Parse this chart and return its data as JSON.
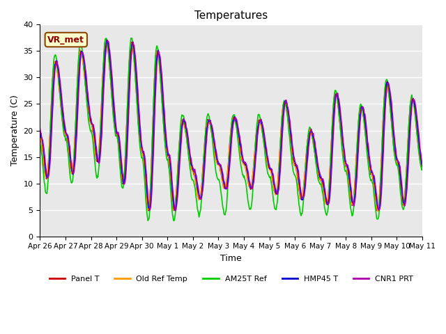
{
  "title": "Temperatures",
  "xlabel": "Time",
  "ylabel": "Temperature (C)",
  "ylim": [
    0,
    40
  ],
  "yticks": [
    0,
    5,
    10,
    15,
    20,
    25,
    30,
    35,
    40
  ],
  "background_color": "#e8e8e8",
  "series": {
    "Panel T": {
      "color": "#cc0000",
      "lw": 1.2
    },
    "Old Ref Temp": {
      "color": "#ff9900",
      "lw": 1.2
    },
    "AM25T Ref": {
      "color": "#00cc00",
      "lw": 1.2
    },
    "HMP45 T": {
      "color": "#0000cc",
      "lw": 1.2
    },
    "CNR1 PRT": {
      "color": "#aa00aa",
      "lw": 1.2
    }
  },
  "text_annotation": "VR_met",
  "tick_labels": [
    "Apr 26",
    "Apr 27",
    "Apr 28",
    "Apr 29",
    "Apr 30",
    "May 1",
    "May 2",
    "May 3",
    "May 4",
    "May 5",
    "May 6",
    "May 7",
    "May 8",
    "May 9",
    "May 10",
    "May 11"
  ],
  "daily_highs": [
    33,
    35,
    37,
    36.5,
    35,
    22,
    22,
    22.5,
    22,
    25.5,
    20,
    27,
    24.5,
    29,
    26
  ],
  "daily_lows": [
    11,
    12,
    14,
    10,
    5,
    5,
    7,
    9,
    9,
    8,
    7,
    6,
    6,
    5,
    6
  ],
  "am25t_highs": [
    34.5,
    36.5,
    37.5,
    37.5,
    36,
    23,
    23,
    23,
    23,
    25.5,
    20.5,
    27.5,
    25,
    29.5,
    26.5
  ],
  "am25t_lows": [
    8,
    10,
    11,
    9,
    3,
    3,
    4,
    4,
    5,
    5,
    4,
    4,
    4,
    3,
    5
  ],
  "cnr1_phase_shift": 1.5,
  "hmp45_phase_shift": 1.0,
  "figsize": [
    6.4,
    4.8
  ],
  "dpi": 100
}
